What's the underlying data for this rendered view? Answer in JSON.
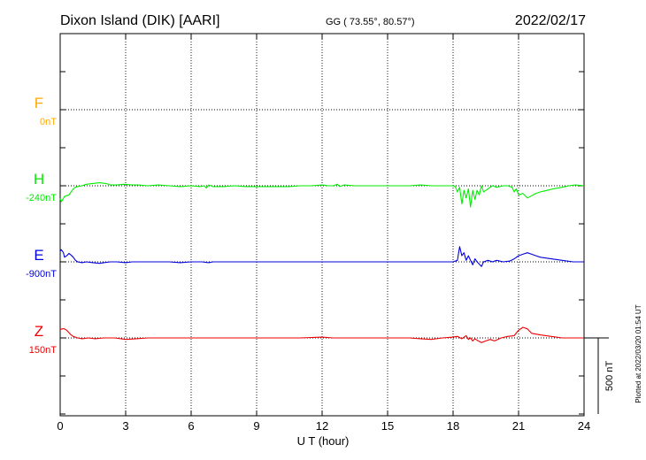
{
  "header": {
    "station": "Dixon Island (DIK)  [AARI]",
    "coords": "GG ( 73.55°,  80.57°)",
    "date": "2022/02/17"
  },
  "footer": {
    "plotted_note": "Plotted at 2022/03/20 01:54 UT"
  },
  "colors": {
    "F": "#ffaa00",
    "H": "#00ee00",
    "E": "#0000dd",
    "Z": "#ee0000"
  },
  "chart_data": {
    "type": "line",
    "title": "Dixon Island (DIK)  [AARI]",
    "xlabel": "U T (hour)",
    "x_ticks": [
      "0",
      "3",
      "6",
      "9",
      "12",
      "15",
      "18",
      "21",
      "24"
    ],
    "xlim": [
      0,
      24
    ],
    "y_units": "nT",
    "grid": true,
    "scale_bar": {
      "label": "500 nT",
      "value": 500
    },
    "channels": [
      {
        "name": "F",
        "baseline": "0nT",
        "plotted": false
      },
      {
        "name": "H",
        "baseline": "-240nT",
        "plotted": true
      },
      {
        "name": "E",
        "baseline": "-900nT",
        "plotted": true
      },
      {
        "name": "Z",
        "baseline": "150nT",
        "plotted": true
      }
    ],
    "series": [
      {
        "name": "H",
        "points": [
          [
            0,
            -85
          ],
          [
            0.05,
            -105
          ],
          [
            0.12,
            -90
          ],
          [
            0.2,
            -70
          ],
          [
            0.3,
            -65
          ],
          [
            0.4,
            -60
          ],
          [
            0.5,
            -40
          ],
          [
            0.6,
            -20
          ],
          [
            0.7,
            -10
          ],
          [
            0.8,
            -5
          ],
          [
            1.0,
            0
          ],
          [
            1.2,
            10
          ],
          [
            1.5,
            15
          ],
          [
            1.8,
            20
          ],
          [
            2.1,
            15
          ],
          [
            2.3,
            5
          ],
          [
            2.6,
            5
          ],
          [
            2.9,
            10
          ],
          [
            3.3,
            5
          ],
          [
            3.6,
            5
          ],
          [
            4.0,
            0
          ],
          [
            4.5,
            5
          ],
          [
            5.0,
            0
          ],
          [
            5.5,
            -5
          ],
          [
            6.0,
            0
          ],
          [
            6.4,
            -5
          ],
          [
            6.6,
            0
          ],
          [
            6.7,
            -15
          ],
          [
            6.8,
            5
          ],
          [
            7.0,
            -5
          ],
          [
            7.5,
            -5
          ],
          [
            8.0,
            0
          ],
          [
            8.5,
            -5
          ],
          [
            9.0,
            -5
          ],
          [
            9.5,
            -5
          ],
          [
            10.0,
            -5
          ],
          [
            10.5,
            -5
          ],
          [
            11.0,
            0
          ],
          [
            11.5,
            0
          ],
          [
            12.0,
            5
          ],
          [
            12.3,
            0
          ],
          [
            12.5,
            0
          ],
          [
            12.7,
            10
          ],
          [
            12.8,
            -5
          ],
          [
            13.0,
            5
          ],
          [
            13.5,
            0
          ],
          [
            14.0,
            0
          ],
          [
            14.5,
            0
          ],
          [
            15.0,
            0
          ],
          [
            15.5,
            0
          ],
          [
            16.0,
            0
          ],
          [
            16.5,
            5
          ],
          [
            17.0,
            0
          ],
          [
            17.5,
            0
          ],
          [
            18.0,
            0
          ],
          [
            18.1,
            -5
          ],
          [
            18.2,
            -40
          ],
          [
            18.3,
            -10
          ],
          [
            18.4,
            -120
          ],
          [
            18.5,
            -30
          ],
          [
            18.6,
            -80
          ],
          [
            18.7,
            -20
          ],
          [
            18.8,
            -140
          ],
          [
            18.9,
            -30
          ],
          [
            19.0,
            -90
          ],
          [
            19.1,
            -30
          ],
          [
            19.2,
            -60
          ],
          [
            19.3,
            0
          ],
          [
            19.4,
            -40
          ],
          [
            19.6,
            -20
          ],
          [
            19.8,
            0
          ],
          [
            20.0,
            -10
          ],
          [
            20.3,
            0
          ],
          [
            20.5,
            0
          ],
          [
            20.7,
            -10
          ],
          [
            20.8,
            -40
          ],
          [
            20.9,
            -20
          ],
          [
            21.0,
            -60
          ],
          [
            21.2,
            -50
          ],
          [
            21.4,
            -80
          ],
          [
            21.6,
            -65
          ],
          [
            21.8,
            -50
          ],
          [
            22.0,
            -40
          ],
          [
            22.3,
            -30
          ],
          [
            22.6,
            -20
          ],
          [
            23.0,
            -10
          ],
          [
            23.3,
            0
          ],
          [
            23.6,
            5
          ],
          [
            24.0,
            0
          ]
        ]
      },
      {
        "name": "E",
        "points": [
          [
            0,
            70
          ],
          [
            0.05,
            80
          ],
          [
            0.15,
            60
          ],
          [
            0.2,
            30
          ],
          [
            0.3,
            40
          ],
          [
            0.4,
            55
          ],
          [
            0.5,
            45
          ],
          [
            0.6,
            30
          ],
          [
            0.7,
            10
          ],
          [
            0.8,
            0
          ],
          [
            1.0,
            -5
          ],
          [
            1.2,
            0
          ],
          [
            1.5,
            -5
          ],
          [
            1.8,
            -10
          ],
          [
            2.0,
            -5
          ],
          [
            2.3,
            0
          ],
          [
            2.6,
            0
          ],
          [
            3.0,
            -5
          ],
          [
            3.3,
            0
          ],
          [
            3.6,
            0
          ],
          [
            4.0,
            0
          ],
          [
            4.5,
            0
          ],
          [
            5.0,
            0
          ],
          [
            5.5,
            -5
          ],
          [
            6.0,
            0
          ],
          [
            6.5,
            0
          ],
          [
            6.8,
            -5
          ],
          [
            7.0,
            0
          ],
          [
            7.5,
            0
          ],
          [
            8.0,
            0
          ],
          [
            8.5,
            0
          ],
          [
            9.0,
            0
          ],
          [
            9.5,
            0
          ],
          [
            10.0,
            0
          ],
          [
            10.5,
            0
          ],
          [
            11.0,
            0
          ],
          [
            11.5,
            0
          ],
          [
            12.0,
            0
          ],
          [
            12.5,
            0
          ],
          [
            13.0,
            0
          ],
          [
            13.5,
            0
          ],
          [
            14.0,
            0
          ],
          [
            14.5,
            0
          ],
          [
            15.0,
            0
          ],
          [
            15.5,
            0
          ],
          [
            16.0,
            0
          ],
          [
            16.5,
            0
          ],
          [
            17.0,
            0
          ],
          [
            17.5,
            0
          ],
          [
            18.0,
            0
          ],
          [
            18.2,
            10
          ],
          [
            18.3,
            100
          ],
          [
            18.4,
            40
          ],
          [
            18.5,
            60
          ],
          [
            18.6,
            10
          ],
          [
            18.7,
            40
          ],
          [
            18.8,
            10
          ],
          [
            18.9,
            -20
          ],
          [
            19.0,
            20
          ],
          [
            19.1,
            0
          ],
          [
            19.3,
            -30
          ],
          [
            19.4,
            0
          ],
          [
            19.6,
            10
          ],
          [
            19.8,
            0
          ],
          [
            20.0,
            10
          ],
          [
            20.3,
            0
          ],
          [
            20.6,
            5
          ],
          [
            20.8,
            20
          ],
          [
            21.0,
            40
          ],
          [
            21.2,
            50
          ],
          [
            21.4,
            60
          ],
          [
            21.6,
            50
          ],
          [
            21.8,
            40
          ],
          [
            22.0,
            30
          ],
          [
            22.5,
            20
          ],
          [
            23.0,
            10
          ],
          [
            23.5,
            0
          ],
          [
            24.0,
            0
          ]
        ]
      },
      {
        "name": "Z",
        "points": [
          [
            0,
            55
          ],
          [
            0.1,
            60
          ],
          [
            0.2,
            60
          ],
          [
            0.3,
            50
          ],
          [
            0.4,
            35
          ],
          [
            0.5,
            20
          ],
          [
            0.6,
            10
          ],
          [
            0.8,
            0
          ],
          [
            1.0,
            -5
          ],
          [
            1.3,
            0
          ],
          [
            1.6,
            -5
          ],
          [
            2.0,
            0
          ],
          [
            2.5,
            0
          ],
          [
            3.0,
            -10
          ],
          [
            3.5,
            -5
          ],
          [
            4.0,
            0
          ],
          [
            5.0,
            0
          ],
          [
            6.0,
            0
          ],
          [
            7.0,
            0
          ],
          [
            8.0,
            0
          ],
          [
            9.0,
            0
          ],
          [
            10.0,
            0
          ],
          [
            11.0,
            0
          ],
          [
            12.0,
            5
          ],
          [
            12.5,
            0
          ],
          [
            13.0,
            0
          ],
          [
            14.0,
            0
          ],
          [
            15.0,
            0
          ],
          [
            16.0,
            0
          ],
          [
            16.5,
            -5
          ],
          [
            17.0,
            -10
          ],
          [
            17.5,
            0
          ],
          [
            18.0,
            5
          ],
          [
            18.2,
            10
          ],
          [
            18.4,
            -5
          ],
          [
            18.6,
            15
          ],
          [
            18.7,
            -10
          ],
          [
            18.8,
            0
          ],
          [
            18.9,
            -20
          ],
          [
            19.0,
            -5
          ],
          [
            19.1,
            -15
          ],
          [
            19.3,
            -30
          ],
          [
            19.5,
            -20
          ],
          [
            19.7,
            -10
          ],
          [
            19.9,
            -20
          ],
          [
            20.2,
            0
          ],
          [
            20.5,
            10
          ],
          [
            20.8,
            15
          ],
          [
            21.0,
            50
          ],
          [
            21.2,
            70
          ],
          [
            21.4,
            60
          ],
          [
            21.6,
            30
          ],
          [
            21.8,
            25
          ],
          [
            22.0,
            20
          ],
          [
            22.5,
            10
          ],
          [
            23.0,
            0
          ],
          [
            23.5,
            0
          ],
          [
            24.0,
            0
          ]
        ]
      }
    ]
  }
}
